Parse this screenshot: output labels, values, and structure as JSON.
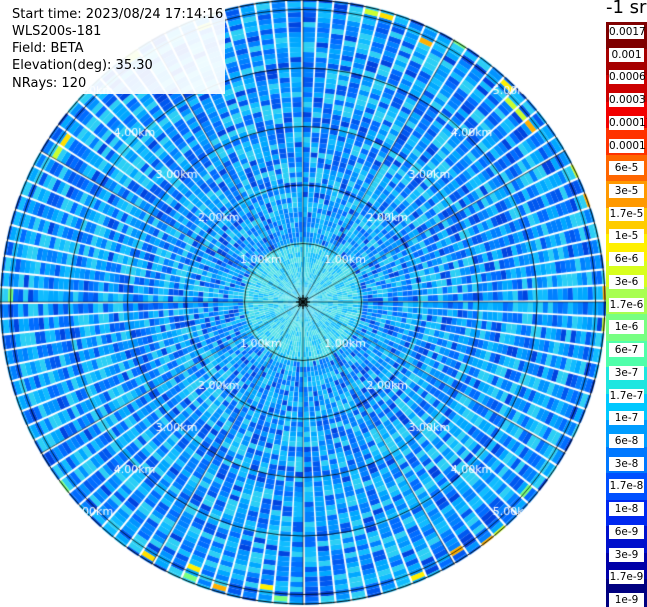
{
  "info": {
    "start_time": "Start time: 2023/08/24 17:14:16",
    "instrument": "WLS200s-181",
    "field": "Field: BETA",
    "elevation": "Elevation(deg): 35.30",
    "nrays": "NRays: 120"
  },
  "colorbar": {
    "units": "-1 sr",
    "labels": [
      "0.0017",
      "0.001",
      "0.0006",
      "0.0003",
      "0.00017",
      "0.0001",
      "6e-5",
      "3e-5",
      "1.7e-5",
      "1e-5",
      "6e-6",
      "3e-6",
      "1.7e-6",
      "1e-6",
      "6e-7",
      "3e-7",
      "1.7e-7",
      "1e-7",
      "6e-8",
      "3e-8",
      "1.7e-8",
      "1e-8",
      "6e-9",
      "3e-9",
      "1.7e-9",
      "1e-9"
    ],
    "colors": [
      "#7f0000",
      "#a60000",
      "#cc0000",
      "#f20000",
      "#ff3200",
      "#ff6600",
      "#ff9900",
      "#ffcc00",
      "#fff000",
      "#d8ff1e",
      "#a8ff50",
      "#78ff82",
      "#50ffaa",
      "#1ee6e0",
      "#00c8ff",
      "#009cff",
      "#0078ff",
      "#0050ff",
      "#0028f0",
      "#0010cc",
      "#0000a8",
      "#000080"
    ]
  },
  "range_rings": {
    "labels": [
      "1.00km",
      "2.00km",
      "3.00km",
      "4.00km",
      "5.00km"
    ]
  },
  "chart_data": {
    "type": "heatmap",
    "title": "",
    "projection": "polar (PPI scan)",
    "start_time": "2023/08/24 17:14:16",
    "instrument": "WLS200s-181",
    "field": "BETA",
    "elevation_deg": 35.3,
    "n_rays": 120,
    "range_km": [
      0,
      5.3
    ],
    "range_rings_km": [
      1,
      2,
      3,
      4,
      5
    ],
    "color_scale": "log",
    "units": "-1 sr",
    "value_range": [
      1e-09,
      0.0017
    ],
    "dominant_values": "mostly 6e-8 to 1e-6 (blue/cyan), lower ~1e-8 near center, isolated 1e-5 to 3e-5 (yellow/orange) patches at far range"
  }
}
